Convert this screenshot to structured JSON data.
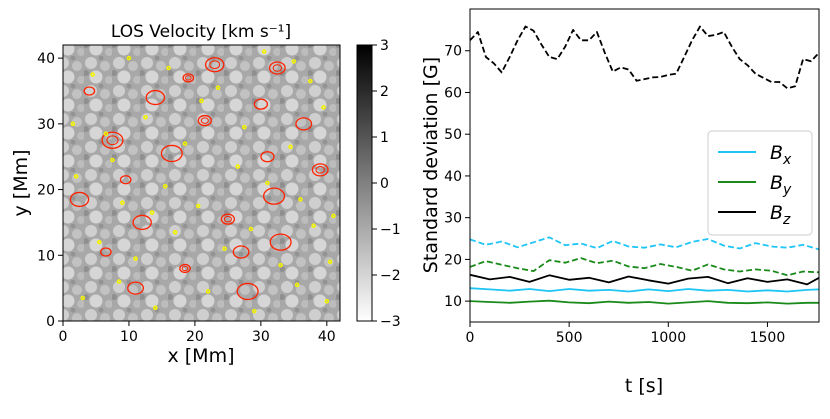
{
  "chart_data": [
    {
      "type": "heatmap",
      "title": "LOS Velocity [km s⁻¹]",
      "xlabel": "x [Mm]",
      "ylabel": "y [Mm]",
      "xlim": [
        0,
        42
      ],
      "ylim": [
        0,
        42
      ],
      "xticks": [
        "0",
        "10",
        "20",
        "30",
        "40"
      ],
      "yticks": [
        "0",
        "10",
        "20",
        "30",
        "40"
      ],
      "colorbar": {
        "range": [
          -3,
          3
        ],
        "ticks": [
          "3",
          "2",
          "1",
          "0",
          "−1",
          "−2",
          "−3"
        ]
      },
      "contours": [
        {
          "color": "#ff2200",
          "x": [
            18.5,
            27.0,
            32.0,
            21.5,
            12.0,
            9.5,
            32.5,
            16.5,
            30.0,
            23.0,
            4.0,
            36.5,
            7.5,
            31.0,
            2.5,
            19.0,
            11.0,
            33.0,
            25.0,
            14.0,
            6.5,
            39.0,
            28.0
          ],
          "y": [
            8.0,
            10.5,
            19.0,
            30.5,
            15.0,
            21.5,
            38.5,
            25.5,
            33.0,
            39.0,
            35.0,
            30.0,
            27.5,
            25.0,
            18.5,
            37.0,
            5.0,
            12.0,
            15.5,
            34.0,
            10.5,
            23.0,
            4.5
          ]
        },
        {
          "color": "#f4f400",
          "x": [
            3.0,
            8.5,
            14.0,
            22.0,
            29.0,
            35.5,
            40.0,
            5.5,
            11.0,
            17.0,
            24.5,
            33.0,
            38.0,
            2.0,
            9.0,
            15.5,
            20.5,
            26.5,
            31.0,
            36.0,
            41.0,
            6.5,
            12.5,
            18.5,
            27.5,
            34.5,
            39.5,
            4.5,
            10.0,
            16.0,
            23.5,
            30.5,
            37.5,
            1.5,
            7.5,
            13.5,
            21.0,
            28.5,
            35.0,
            40.5
          ],
          "y": [
            3.5,
            6.0,
            2.0,
            4.5,
            1.5,
            5.5,
            3.0,
            12.0,
            9.5,
            13.5,
            11.0,
            8.5,
            14.5,
            22.0,
            18.0,
            20.5,
            17.5,
            23.5,
            21.0,
            18.5,
            16.0,
            28.5,
            31.0,
            27.0,
            29.5,
            26.5,
            32.5,
            37.5,
            40.0,
            38.5,
            35.5,
            41.0,
            36.5,
            30.0,
            24.5,
            16.5,
            33.5,
            14.0,
            39.5,
            9.0
          ]
        }
      ]
    },
    {
      "type": "line",
      "xlabel": "t [s]",
      "ylabel": "Standard deviation [G]",
      "xlim": [
        0,
        1760
      ],
      "ylim": [
        5,
        80
      ],
      "xticks": [
        0,
        500,
        1000,
        1500
      ],
      "yticks": [
        10,
        20,
        30,
        40,
        50,
        60,
        70
      ],
      "legend": {
        "position": "center-right",
        "entries": [
          "B_x",
          "B_y",
          "B_z"
        ]
      },
      "series": [
        {
          "name": "B_x",
          "label_base": "B",
          "label_sub": "x",
          "color": "#1ec5f5",
          "style": "solid",
          "x": [
            0,
            100,
            200,
            300,
            400,
            500,
            600,
            700,
            800,
            900,
            1000,
            1100,
            1200,
            1300,
            1400,
            1500,
            1600,
            1700,
            1760
          ],
          "y": [
            13.1,
            12.8,
            12.5,
            12.9,
            12.4,
            12.9,
            12.5,
            12.7,
            12.3,
            12.8,
            12.4,
            12.9,
            12.5,
            12.7,
            12.3,
            12.6,
            12.3,
            12.7,
            12.8
          ]
        },
        {
          "name": "B_y",
          "label_base": "B",
          "label_sub": "y",
          "color": "#1a8a1a",
          "style": "solid",
          "x": [
            0,
            100,
            200,
            300,
            400,
            500,
            600,
            700,
            800,
            900,
            1000,
            1100,
            1200,
            1300,
            1400,
            1500,
            1600,
            1700,
            1760
          ],
          "y": [
            10.0,
            9.8,
            9.6,
            9.9,
            10.1,
            9.7,
            9.5,
            9.9,
            9.6,
            9.8,
            9.4,
            9.7,
            10.0,
            9.6,
            9.5,
            9.7,
            9.4,
            9.6,
            9.6
          ]
        },
        {
          "name": "B_z",
          "label_base": "B",
          "label_sub": "z",
          "color": "#000000",
          "style": "solid",
          "x": [
            0,
            100,
            200,
            300,
            400,
            500,
            600,
            700,
            800,
            900,
            1000,
            1100,
            1200,
            1300,
            1400,
            1500,
            1600,
            1700,
            1760
          ],
          "y": [
            16.3,
            15.2,
            15.8,
            14.6,
            16.2,
            15.1,
            15.6,
            14.5,
            15.9,
            15.0,
            14.2,
            15.4,
            15.8,
            14.3,
            15.5,
            14.6,
            15.2,
            14.0,
            15.6
          ]
        },
        {
          "name": "B_x (dashed)",
          "color": "#1ec5f5",
          "style": "dashed",
          "x": [
            0,
            80,
            160,
            240,
            320,
            400,
            480,
            560,
            640,
            720,
            800,
            880,
            960,
            1040,
            1120,
            1200,
            1280,
            1360,
            1440,
            1520,
            1600,
            1680,
            1760
          ],
          "y": [
            24.8,
            23.5,
            24.3,
            22.9,
            24.1,
            25.3,
            23.4,
            23.8,
            22.7,
            24.4,
            23.1,
            22.8,
            23.6,
            22.9,
            24.2,
            24.9,
            23.3,
            22.6,
            23.9,
            23.1,
            22.8,
            23.5,
            22.4
          ]
        },
        {
          "name": "B_y (dashed)",
          "color": "#1a8a1a",
          "style": "dashed",
          "x": [
            0,
            80,
            160,
            240,
            320,
            400,
            480,
            560,
            640,
            720,
            800,
            880,
            960,
            1040,
            1120,
            1200,
            1280,
            1360,
            1440,
            1520,
            1600,
            1680,
            1760
          ],
          "y": [
            18.2,
            19.6,
            18.7,
            17.9,
            17.2,
            19.8,
            19.2,
            20.3,
            19.1,
            19.7,
            18.3,
            17.9,
            18.9,
            18.2,
            17.3,
            18.8,
            17.6,
            17.1,
            17.6,
            17.3,
            16.2,
            17.1,
            16.9
          ]
        },
        {
          "name": "B_z (dashed)",
          "color": "#000000",
          "style": "dashed",
          "x": [
            0,
            40,
            80,
            120,
            160,
            200,
            240,
            280,
            320,
            360,
            400,
            440,
            480,
            520,
            560,
            600,
            640,
            680,
            720,
            760,
            800,
            840,
            880,
            920,
            960,
            1000,
            1040,
            1080,
            1120,
            1160,
            1200,
            1240,
            1280,
            1320,
            1360,
            1400,
            1440,
            1480,
            1520,
            1560,
            1600,
            1640,
            1680,
            1720,
            1760
          ],
          "y": [
            72.5,
            74.5,
            68.5,
            67.0,
            64.8,
            68.5,
            72.5,
            75.8,
            74.8,
            71.5,
            68.5,
            68.0,
            71.0,
            75.0,
            72.5,
            72.5,
            74.5,
            69.5,
            65.0,
            66.0,
            65.5,
            62.8,
            63.2,
            63.6,
            63.7,
            64.2,
            64.5,
            68.5,
            72.5,
            75.8,
            73.5,
            73.8,
            74.5,
            71.0,
            68.0,
            66.5,
            64.5,
            63.5,
            62.5,
            62.5,
            61.0,
            61.5,
            68.0,
            67.5,
            69.5
          ]
        }
      ]
    }
  ]
}
